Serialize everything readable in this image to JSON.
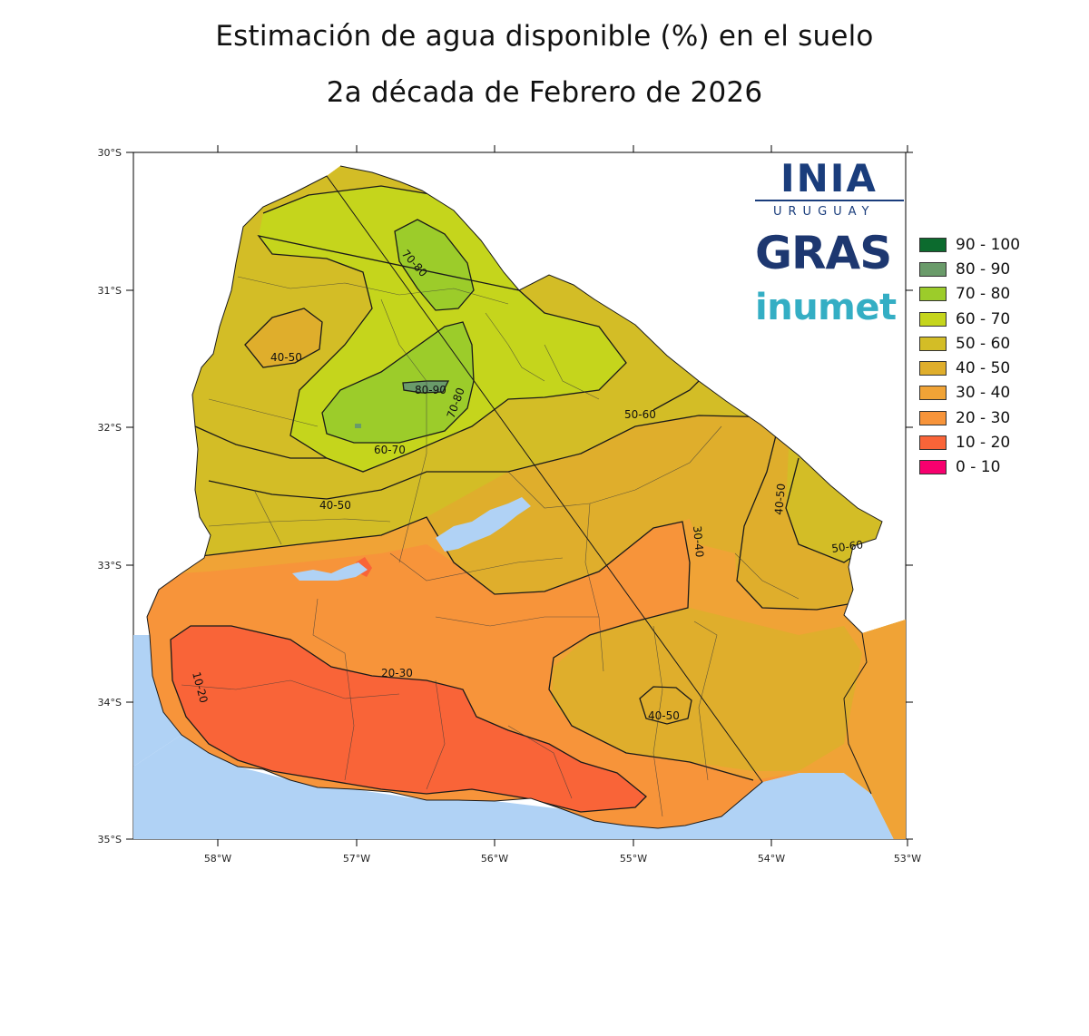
{
  "title_line1": "Estimación de agua disponible (%) en el suelo",
  "title_line2": "2a década de Febrero de 2026",
  "logos": {
    "inia": "INIA",
    "inia_sub": "URUGUAY",
    "gras": "GRAS",
    "inumet": "inumet"
  },
  "axes": {
    "lat_labels": [
      "30°S",
      "31°S",
      "32°S",
      "33°S",
      "34°S",
      "35°S"
    ],
    "lon_labels": [
      "58°W",
      "57°W",
      "56°W",
      "55°W",
      "54°W",
      "53°W"
    ]
  },
  "legend": [
    {
      "label": "90 - 100",
      "color": "#0c6b2e"
    },
    {
      "label": "80 - 90",
      "color": "#6a9b6a"
    },
    {
      "label": "70 - 80",
      "color": "#9ccc2a"
    },
    {
      "label": "60 - 70",
      "color": "#c5d51c"
    },
    {
      "label": "50 - 60",
      "color": "#d3bd26"
    },
    {
      "label": "40 - 50",
      "color": "#dfae2c"
    },
    {
      "label": "30 - 40",
      "color": "#f0a336"
    },
    {
      "label": "20 - 30",
      "color": "#f7943a"
    },
    {
      "label": "10 - 20",
      "color": "#f96438"
    },
    {
      "label": "0 - 10",
      "color": "#f7006e"
    }
  ],
  "contour_labels": [
    "70-80",
    "40-50",
    "80-90",
    "70-80",
    "60-70",
    "50-60",
    "40-50",
    "40-50",
    "50-60",
    "30-40",
    "20-30",
    "10-20",
    "40-50"
  ],
  "colors": {
    "water": "#b0d2f5",
    "border": "#222222"
  }
}
